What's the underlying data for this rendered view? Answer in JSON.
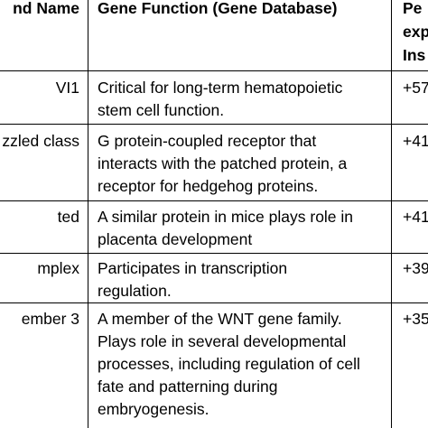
{
  "header": {
    "col1": "nd Name",
    "col2": "Gene Function (Gene Database)",
    "col3_lines": [
      "Pe",
      "exp",
      "Ins"
    ]
  },
  "rows": [
    {
      "name_lines": [
        "VI1"
      ],
      "function_lines": [
        "Critical for long-term hematopoietic",
        "stem cell function."
      ],
      "value": "+57"
    },
    {
      "name_lines": [
        "zzled class"
      ],
      "function_lines": [
        "G protein-coupled receptor that",
        "interacts with the patched protein, a",
        "receptor for hedgehog proteins."
      ],
      "value": "+41"
    },
    {
      "name_lines": [
        "ted"
      ],
      "function_lines": [
        "A similar protein in mice plays role in",
        "placenta development"
      ],
      "value": "+41"
    },
    {
      "name_lines": [
        "mplex"
      ],
      "function_lines": [
        "Participates in transcription",
        "regulation."
      ],
      "value": "+39"
    },
    {
      "name_lines": [
        "ember 3"
      ],
      "function_lines": [
        "A member of the WNT gene family.",
        "Plays role in several developmental",
        "processes, including regulation of cell",
        "fate and patterning during",
        "embryogenesis."
      ],
      "value": "+35"
    }
  ]
}
